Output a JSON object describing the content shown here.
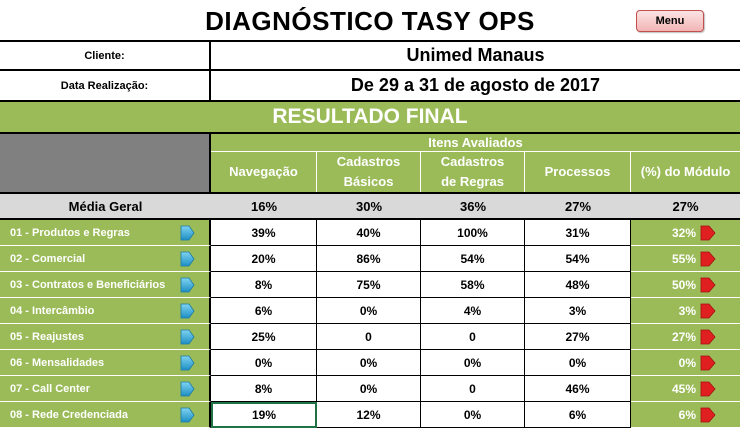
{
  "title": "DIAGNÓSTICO TASY OPS",
  "menu_label": "Menu",
  "info": {
    "client_label": "Cliente:",
    "client_value": "Unimed Manaus",
    "date_label": "Data Realização:",
    "date_value": "De 29 a 31 de agosto de 2017"
  },
  "banner": "RESULTADO FINAL",
  "items_header": "Itens Avaliados",
  "columns": [
    "Navegação",
    "Cadastros Básicos",
    "Cadastros de Regras",
    "Processos",
    "(%) do Módulo"
  ],
  "media": {
    "label": "Média Geral",
    "values": [
      "16%",
      "30%",
      "36%",
      "27%",
      "27%"
    ]
  },
  "rows": [
    {
      "name": "01 - Produtos e Regras",
      "values": [
        "39%",
        "40%",
        "100%",
        "31%"
      ],
      "module": "32%"
    },
    {
      "name": "02 - Comercial",
      "values": [
        "20%",
        "86%",
        "54%",
        "54%"
      ],
      "module": "55%"
    },
    {
      "name": "03 - Contratos e Beneficiários",
      "values": [
        "8%",
        "75%",
        "58%",
        "48%"
      ],
      "module": "50%"
    },
    {
      "name": "04 - Intercâmbio",
      "values": [
        "6%",
        "0%",
        "4%",
        "3%"
      ],
      "module": "3%"
    },
    {
      "name": "05 - Reajustes",
      "values": [
        "25%",
        "0",
        "0",
        "27%"
      ],
      "module": "27%"
    },
    {
      "name": "06 - Mensalidades",
      "values": [
        "0%",
        "0%",
        "0%",
        "0%"
      ],
      "module": "0%"
    },
    {
      "name": "07 - Call Center",
      "values": [
        "8%",
        "0%",
        "0",
        "46%"
      ],
      "module": "45%"
    },
    {
      "name": "08 - Rede Credenciada",
      "values": [
        "19%",
        "12%",
        "0%",
        "6%"
      ],
      "module": "6%"
    }
  ],
  "colors": {
    "accent_green": "#9bbb59",
    "header_grey": "#808080",
    "media_grey": "#d9d9d9",
    "arrow_blue": "#2aa6d6",
    "arrow_red": "#e02020",
    "menu_button": "#f2b5b5"
  },
  "icons": {
    "row_arrow": "blue-right-arrow-icon",
    "module_arrow": "red-right-arrow-icon"
  }
}
